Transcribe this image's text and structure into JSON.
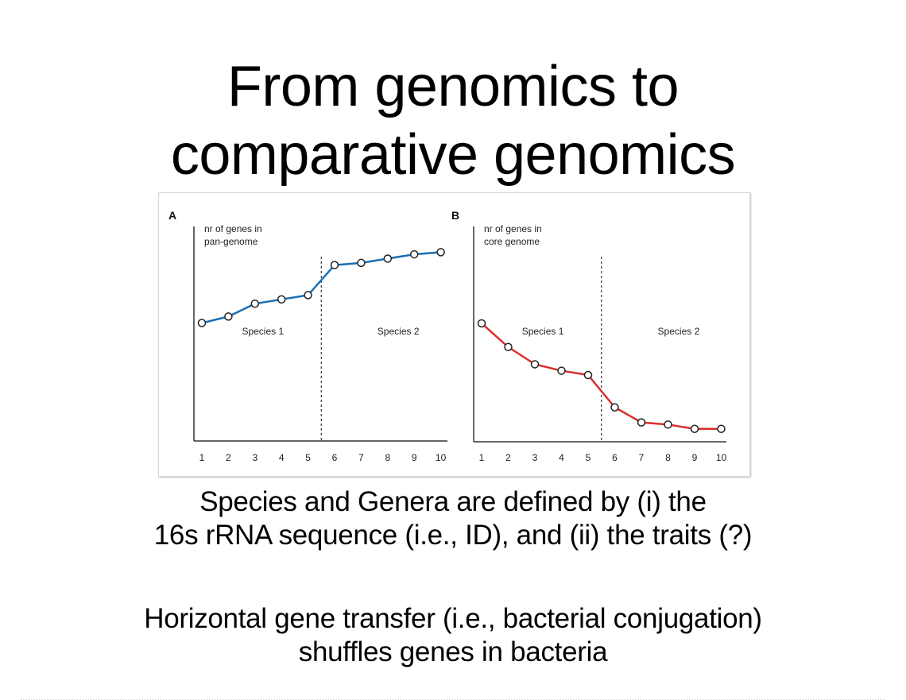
{
  "slide": {
    "title_lines": [
      "From genomics to",
      "comparative genomics"
    ],
    "paragraph1_lines": [
      "Species and Genera are defined by (i) the",
      "16s rRNA sequence (i.e., ID), and (ii) the traits (?)"
    ],
    "paragraph2_lines": [
      "Horizontal gene transfer (i.e., bacterial conjugation)",
      "shuffles genes in bacteria"
    ]
  },
  "colors": {
    "pan_genome_line": "#1a6fb3",
    "core_genome_line": "#d9302c",
    "axis": "#333333",
    "text": "#000000"
  },
  "chart_data": [
    {
      "type": "line",
      "panel_label": "A",
      "title": "",
      "ylabel_lines": [
        "nr of genes in",
        "pan-genome"
      ],
      "xlabel": "",
      "x": [
        1,
        2,
        3,
        4,
        5,
        6,
        7,
        8,
        9,
        10
      ],
      "series": [
        {
          "name": "pan-genome",
          "values": [
            55,
            58,
            64,
            66,
            68,
            82,
            83,
            85,
            87,
            88
          ]
        }
      ],
      "ylim": [
        0,
        100
      ],
      "y_ticks_shown": false,
      "divider_after_x": 5.5,
      "region_labels": [
        {
          "text": "Species 1",
          "x": 3.3
        },
        {
          "text": "Species 2",
          "x": 8.4
        }
      ],
      "grid": false,
      "legend": "none"
    },
    {
      "type": "line",
      "panel_label": "B",
      "title": "",
      "ylabel_lines": [
        "nr of genes in",
        "core genome"
      ],
      "xlabel": "",
      "x": [
        1,
        2,
        3,
        4,
        5,
        6,
        7,
        8,
        9,
        10
      ],
      "series": [
        {
          "name": "core genome",
          "values": [
            55,
            44,
            36,
            33,
            31,
            16,
            9,
            8,
            6,
            6
          ]
        }
      ],
      "ylim": [
        0,
        100
      ],
      "y_ticks_shown": false,
      "divider_after_x": 5.5,
      "region_labels": [
        {
          "text": "Species 1",
          "x": 3.3
        },
        {
          "text": "Species 2",
          "x": 8.4
        }
      ],
      "grid": false,
      "legend": "none"
    }
  ]
}
